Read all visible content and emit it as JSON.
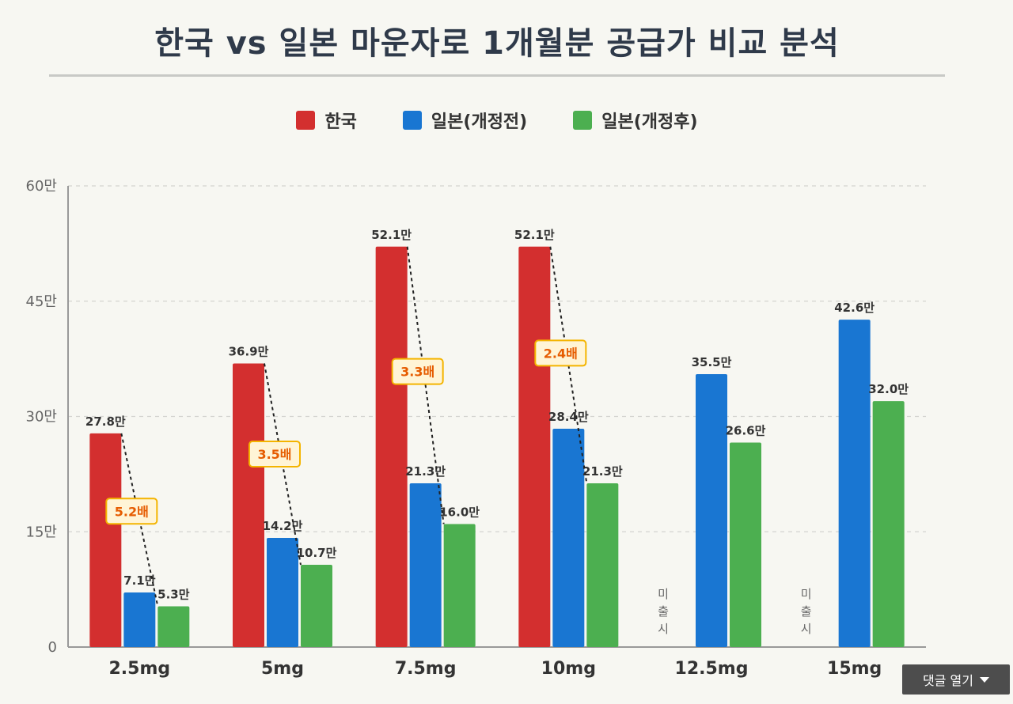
{
  "chart_data": {
    "type": "bar",
    "title": "한국 vs 일본 마운자로 1개월분 공급가 비교 분석",
    "categories": [
      "2.5mg",
      "5mg",
      "7.5mg",
      "10mg",
      "12.5mg",
      "15mg"
    ],
    "series": [
      {
        "name": "한국",
        "color": "#d32f2f",
        "values": [
          27.8,
          36.9,
          52.1,
          52.1,
          null,
          null
        ],
        "labels": [
          "27.8만",
          "36.9만",
          "52.1만",
          "52.1만",
          null,
          null
        ]
      },
      {
        "name": "일본(개정전)",
        "color": "#1976d2",
        "values": [
          7.1,
          14.2,
          21.3,
          28.4,
          35.5,
          42.6
        ],
        "labels": [
          "7.1만",
          "14.2만",
          "21.3만",
          "28.4만",
          "35.5만",
          "42.6만"
        ]
      },
      {
        "name": "일본(개정후)",
        "color": "#4caf50",
        "values": [
          5.3,
          10.7,
          16.0,
          21.3,
          26.6,
          32.0
        ],
        "labels": [
          "5.3만",
          "10.7만",
          "16.0만",
          "21.3만",
          "26.6만",
          "32.0만"
        ]
      }
    ],
    "ratios": [
      "5.2배",
      "3.5배",
      "3.3배",
      "2.4배",
      null,
      null
    ],
    "missing_label": "미출시",
    "ylim": [
      0,
      60
    ],
    "yticks": [
      0,
      15,
      30,
      45,
      60
    ],
    "ytick_labels": [
      "0",
      "15만",
      "30만",
      "45만",
      "60만"
    ],
    "grid": true,
    "legend_position": "top-center"
  },
  "ui": {
    "comment_button_label": "댓글 열기"
  }
}
